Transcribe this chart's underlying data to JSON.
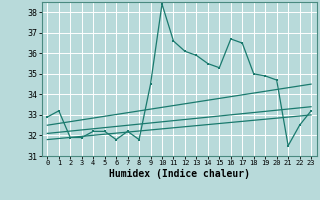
{
  "xlabel": "Humidex (Indice chaleur)",
  "x_values": [
    0,
    1,
    2,
    3,
    4,
    5,
    6,
    7,
    8,
    9,
    10,
    11,
    12,
    13,
    14,
    15,
    16,
    17,
    18,
    19,
    20,
    21,
    22,
    23
  ],
  "y_main": [
    32.9,
    33.2,
    31.9,
    31.9,
    32.2,
    32.2,
    31.8,
    32.2,
    31.8,
    34.5,
    38.4,
    36.6,
    36.1,
    35.9,
    35.5,
    35.3,
    36.7,
    36.5,
    35.0,
    34.9,
    34.7,
    31.5,
    32.5,
    33.2
  ],
  "ylim": [
    31,
    38.5
  ],
  "xlim": [
    -0.5,
    23.5
  ],
  "yticks": [
    31,
    32,
    33,
    34,
    35,
    36,
    37,
    38
  ],
  "xticks": [
    0,
    1,
    2,
    3,
    4,
    5,
    6,
    7,
    8,
    9,
    10,
    11,
    12,
    13,
    14,
    15,
    16,
    17,
    18,
    19,
    20,
    21,
    22,
    23
  ],
  "line_color": "#1a7a6e",
  "bg_color": "#b8dada",
  "grid_color": "#d0eaea",
  "reg_line1": [
    32.5,
    34.5
  ],
  "reg_line2": [
    32.1,
    33.4
  ],
  "reg_line3": [
    31.8,
    33.0
  ]
}
